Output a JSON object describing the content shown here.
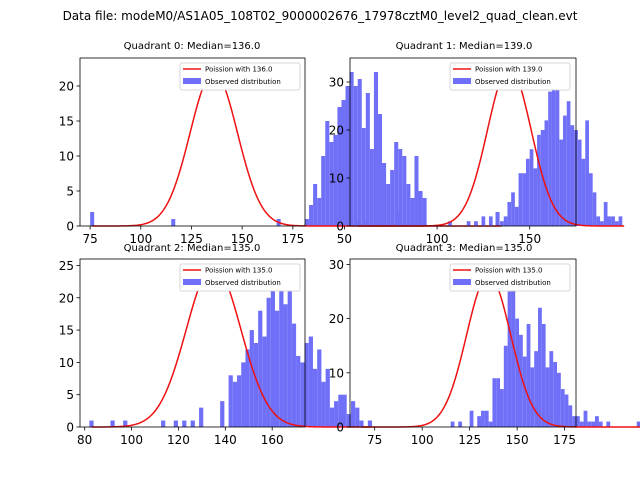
{
  "figure": {
    "suptitle": "Data file: modeM0/AS1A05_108T02_9000002676_17978cztM0_level2_quad_clean.evt"
  },
  "colors": {
    "bar": "#6f6ff7",
    "curve": "#ee1111",
    "axis": "#000000"
  },
  "chart_data": [
    {
      "type": "bar",
      "title": "Quadrant 0: Median=136.0",
      "legend": [
        "Poission with 136.0",
        "Observed distribution"
      ],
      "legend_position": "top-right",
      "xlim": [
        70,
        181
      ],
      "ylim": [
        0,
        24
      ],
      "xticks": [
        75,
        100,
        125,
        150,
        175
      ],
      "yticks": [
        0,
        5,
        10,
        15,
        20
      ],
      "bin_start": 75,
      "bin_width": 2.0,
      "values": [
        2,
        0,
        0,
        0,
        0,
        0,
        0,
        0,
        0,
        0,
        0,
        0,
        0,
        0,
        0,
        0,
        0,
        0,
        0,
        0,
        1,
        0,
        0,
        0,
        0,
        0,
        0,
        0,
        0,
        0,
        0,
        0,
        0,
        0,
        0,
        0,
        0,
        0,
        0,
        0,
        0,
        0,
        0,
        0,
        0,
        0,
        1,
        0,
        0,
        0,
        0,
        0,
        0,
        1,
        3,
        6,
        4,
        10,
        15,
        12,
        13,
        17,
        18,
        20,
        22,
        20,
        21,
        14,
        19,
        11,
        22,
        16,
        9,
        6,
        8,
        12,
        11,
        10,
        6,
        4,
        10,
        5,
        4,
        0,
        0,
        0,
        0,
        0,
        0,
        0,
        0,
        0,
        0,
        0,
        0,
        0,
        0,
        0,
        0,
        0,
        2,
        0
      ],
      "poisson_mean": 136.0,
      "poisson_scale": 22.0
    },
    {
      "type": "bar",
      "title": "Quadrant 1: Median=139.0",
      "legend": [
        "Poission with 139.0",
        "Observed distribution"
      ],
      "legend_position": "top-right",
      "xlim": [
        53,
        175
      ],
      "ylim": [
        0,
        35
      ],
      "xticks": [
        50,
        100,
        150
      ],
      "yticks": [
        0,
        10,
        20,
        30
      ],
      "bin_start": 56,
      "bin_width": 2.0,
      "values": [
        1,
        0,
        1,
        0,
        0,
        0,
        0,
        0,
        0,
        0,
        0,
        3,
        0,
        0,
        0,
        0,
        0,
        0,
        0,
        0,
        0,
        0,
        0,
        0,
        0,
        1,
        0,
        0,
        0,
        0,
        1,
        0,
        1,
        0,
        2,
        0,
        2,
        0,
        0,
        1,
        2,
        5,
        7,
        4,
        11,
        11,
        14,
        16,
        12,
        19,
        20,
        22,
        28,
        32,
        30,
        18,
        23,
        26,
        21,
        20,
        18,
        14,
        22,
        11,
        7,
        2,
        1,
        5,
        2,
        2,
        1,
        2,
        0
      ],
      "poisson_mean": 139.0,
      "poisson_scale": 33.0
    },
    {
      "type": "bar",
      "title": "Quadrant 2: Median=135.0",
      "legend": [
        "Poission with 135.0",
        "Observed distribution"
      ],
      "legend_position": "top-right",
      "xlim": [
        78,
        174
      ],
      "ylim": [
        0,
        26
      ],
      "xticks": [
        80,
        100,
        120,
        140,
        160
      ],
      "yticks": [
        0,
        5,
        10,
        15,
        20,
        25
      ],
      "bin_start": 82,
      "bin_width": 1.8,
      "values": [
        1,
        0,
        0,
        0,
        0,
        1,
        0,
        0,
        1,
        0,
        0,
        0,
        0,
        0,
        0,
        0,
        0,
        1,
        0,
        0,
        1,
        0,
        1,
        0,
        1,
        0,
        3,
        0,
        0,
        0,
        0,
        4,
        0,
        8,
        7,
        8,
        10,
        12,
        15,
        13,
        18,
        14,
        20,
        22,
        18,
        23,
        19,
        21,
        16,
        11,
        10,
        13,
        14,
        9,
        12,
        7,
        9,
        3,
        4,
        5,
        5,
        2,
        4,
        3,
        1,
        0,
        1
      ],
      "poisson_mean": 135.0,
      "poisson_scale": 25.0
    },
    {
      "type": "bar",
      "title": "Quadrant 3: Median=135.0",
      "legend": [
        "Poission with 135.0",
        "Observed distribution"
      ],
      "legend_position": "top-right",
      "xlim": [
        62,
        181
      ],
      "ylim": [
        0,
        31
      ],
      "xticks": [
        75,
        100,
        125,
        150,
        175
      ],
      "yticks": [
        0,
        10,
        20,
        30
      ],
      "bin_start": 67,
      "bin_width": 2.0,
      "values": [
        1,
        0,
        0,
        0,
        0,
        0,
        0,
        0,
        0,
        0,
        0,
        0,
        0,
        0,
        0,
        0,
        0,
        0,
        0,
        0,
        0,
        0,
        0,
        0,
        1,
        0,
        1,
        0,
        0,
        3,
        0,
        2,
        3,
        3,
        1,
        9,
        9,
        7,
        15,
        25,
        27,
        20,
        17,
        13,
        19,
        11,
        14,
        22,
        19,
        11,
        14,
        12,
        10,
        7,
        6,
        4,
        2,
        2,
        1,
        3,
        1,
        1,
        2,
        1,
        0,
        1,
        0,
        0,
        0,
        0,
        0,
        0,
        0,
        1,
        0
      ],
      "poisson_mean": 135.0,
      "poisson_scale": 28.0
    }
  ]
}
